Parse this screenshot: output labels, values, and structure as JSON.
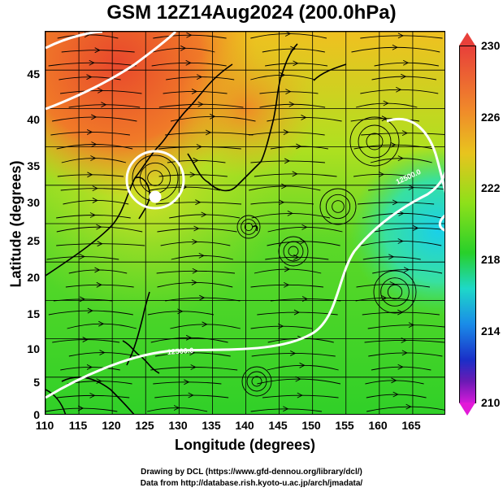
{
  "title": "GSM 12Z14Aug2024 (200.0hPa)",
  "axes": {
    "xlabel": "Longitude (degrees)",
    "ylabel": "Latitude  (degrees)",
    "xticks": [
      "110",
      "115",
      "120",
      "125",
      "130",
      "135",
      "140",
      "145",
      "150",
      "155",
      "160",
      "165"
    ],
    "yticks": [
      "45",
      "40",
      "35",
      "30",
      "25",
      "20",
      "15",
      "10",
      "5",
      "0"
    ],
    "xlim": [
      110,
      170
    ],
    "ylim": [
      0,
      50
    ]
  },
  "contour_labels": [
    "12500.0",
    "12500.0"
  ],
  "colorbar": {
    "ticks": [
      "230",
      "226",
      "222",
      "218",
      "214",
      "210"
    ],
    "colors": {
      "high": "#e8403a",
      "mid_high": "#f08a2a",
      "mid": "#28d02a",
      "low_mid": "#1ed8c8",
      "low": "#1a2fc8",
      "lowest": "#d21ad8"
    }
  },
  "credits": {
    "line1": "Drawing by DCL (https://www.gfd-dennou.org/library/dcl/)",
    "line2": "Data from http://database.rish.kyoto-u.ac.jp/arch/jmadata/"
  }
}
